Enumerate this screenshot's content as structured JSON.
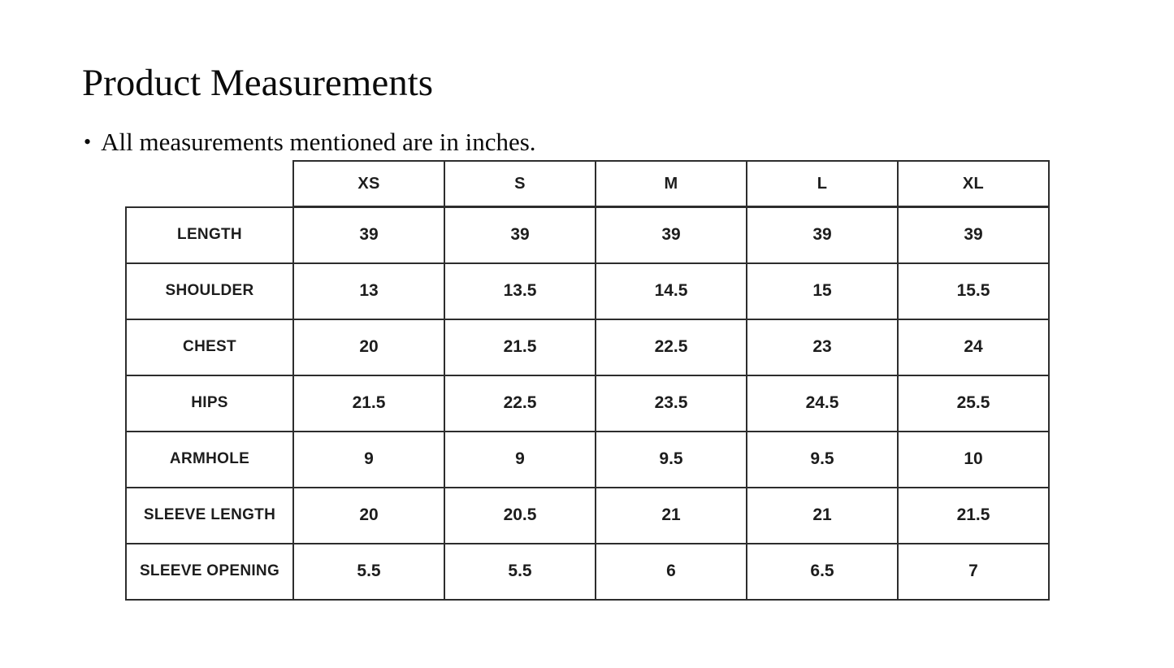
{
  "page": {
    "title": "Product Measurements",
    "note": {
      "bullet": "•",
      "text": "All measurements mentioned are in inches."
    }
  },
  "colors": {
    "background": "#ffffff",
    "table_border": "#2d2d2d",
    "table_text": "#1d1d1d",
    "body_text": "#0b0b0b"
  },
  "table": {
    "corner_label": "",
    "columns": [
      "XS",
      "S",
      "M",
      "L",
      "XL"
    ],
    "rows": [
      {
        "label": "LENGTH",
        "values": [
          "39",
          "39",
          "39",
          "39",
          "39"
        ]
      },
      {
        "label": "SHOULDER",
        "values": [
          "13",
          "13.5",
          "14.5",
          "15",
          "15.5"
        ]
      },
      {
        "label": "CHEST",
        "values": [
          "20",
          "21.5",
          "22.5",
          "23",
          "24"
        ]
      },
      {
        "label": "HIPS",
        "values": [
          "21.5",
          "22.5",
          "23.5",
          "24.5",
          "25.5"
        ]
      },
      {
        "label": "ARMHOLE",
        "values": [
          "9",
          "9",
          "9.5",
          "9.5",
          "10"
        ]
      },
      {
        "label": "SLEEVE LENGTH",
        "values": [
          "20",
          "20.5",
          "21",
          "21",
          "21.5"
        ]
      },
      {
        "label": "SLEEVE OPENING",
        "values": [
          "5.5",
          "5.5",
          "6",
          "6.5",
          "7"
        ]
      }
    ]
  }
}
